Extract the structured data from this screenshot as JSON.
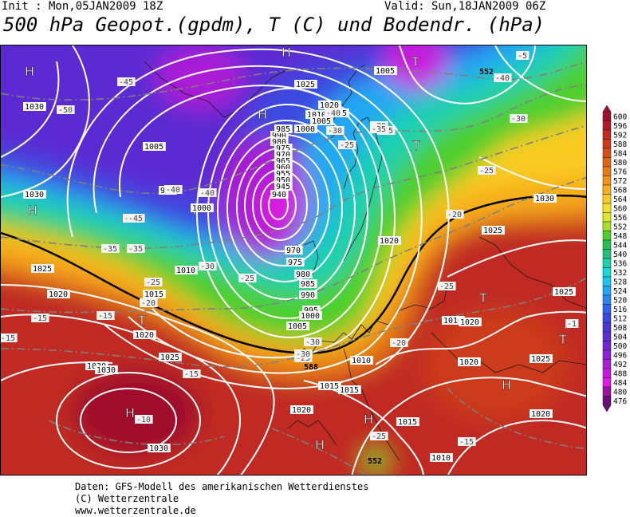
{
  "header": {
    "init": "Init : Mon,05JAN2009 18Z",
    "valid": "Valid: Sun,18JAN2009 06Z",
    "title": "500 hPa Geopot.(gpdm), T (C) und Bodendr. (hPa)"
  },
  "legend": {
    "unit": "gpdm",
    "labels": [
      "600",
      "596",
      "592",
      "588",
      "584",
      "580",
      "576",
      "572",
      "568",
      "564",
      "560",
      "556",
      "552",
      "548",
      "544",
      "540",
      "536",
      "532",
      "528",
      "524",
      "520",
      "516",
      "512",
      "508",
      "504",
      "500",
      "496",
      "492",
      "488",
      "484",
      "480",
      "476"
    ],
    "colors": [
      "#a0102a",
      "#b01a2c",
      "#c02a20",
      "#cc3a1a",
      "#d64e16",
      "#e06614",
      "#e87c14",
      "#f09418",
      "#f6ae1c",
      "#facc22",
      "#f4e02a",
      "#dce82a",
      "#a6de2a",
      "#4ecf2e",
      "#24c050",
      "#22c07c",
      "#1ed0b0",
      "#1cd8d6",
      "#1cc4f0",
      "#22a8f2",
      "#2a86ee",
      "#3262ea",
      "#3a48e0",
      "#4838d6",
      "#5c2cd2",
      "#7424d2",
      "#9020d4",
      "#aa1ed6",
      "#c81ade",
      "#e01ae2",
      "#9a14a0",
      "#6a0a7a"
    ]
  },
  "map": {
    "pressure_centers": [
      {
        "type": "H"
      },
      {
        "type": "H"
      },
      {
        "type": "H"
      },
      {
        "type": "H"
      },
      {
        "type": "H"
      },
      {
        "type": "H"
      },
      {
        "type": "H"
      },
      {
        "type": "H"
      },
      {
        "type": "T"
      },
      {
        "type": "T"
      },
      {
        "type": "T"
      },
      {
        "type": "T"
      },
      {
        "type": "T"
      },
      {
        "type": "T"
      },
      {
        "type": "T"
      }
    ],
    "isobar_labels": [
      "1030",
      "1030",
      "1030",
      "1025",
      "1020",
      "1015",
      "1010",
      "1005",
      "1000",
      "995",
      "990",
      "985",
      "980",
      "975",
      "970",
      "965",
      "960",
      "955",
      "950",
      "945",
      "940",
      "1025",
      "1020",
      "1015",
      "1010",
      "1005",
      "1000",
      "995",
      "990",
      "985",
      "980",
      "975",
      "970",
      "1005",
      "1000",
      "1010",
      "1015",
      "1025",
      "1020",
      "1030",
      "1025",
      "1020",
      "1015",
      "1010",
      "1025",
      "1020",
      "1015",
      "1020",
      "1025",
      "1030",
      "1005",
      "1010",
      "1030",
      "1020",
      "1020"
    ],
    "temperature_labels": [
      "-50",
      "-45",
      "-45",
      "-40",
      "-40",
      "-35",
      "-30",
      "-30",
      "-25",
      "-20",
      "-15",
      "-10",
      "-25",
      "-30",
      "-25",
      "-20",
      "-15",
      "-25",
      "-25",
      "-15",
      "-15",
      "-20",
      "-25",
      "-30",
      "-35",
      "-35",
      "-40",
      "-30",
      "-5",
      "-1",
      "-45",
      "-25",
      "-30",
      "-35",
      "-40",
      "-15"
    ],
    "contour_labels": [
      "588",
      "552",
      "552"
    ]
  },
  "footer": {
    "line1": "Daten: GFS-Modell des amerikanischen Wetterdienstes",
    "line2": "(C) Wetterzentrale",
    "line3": "www.wetterzentrale.de"
  }
}
